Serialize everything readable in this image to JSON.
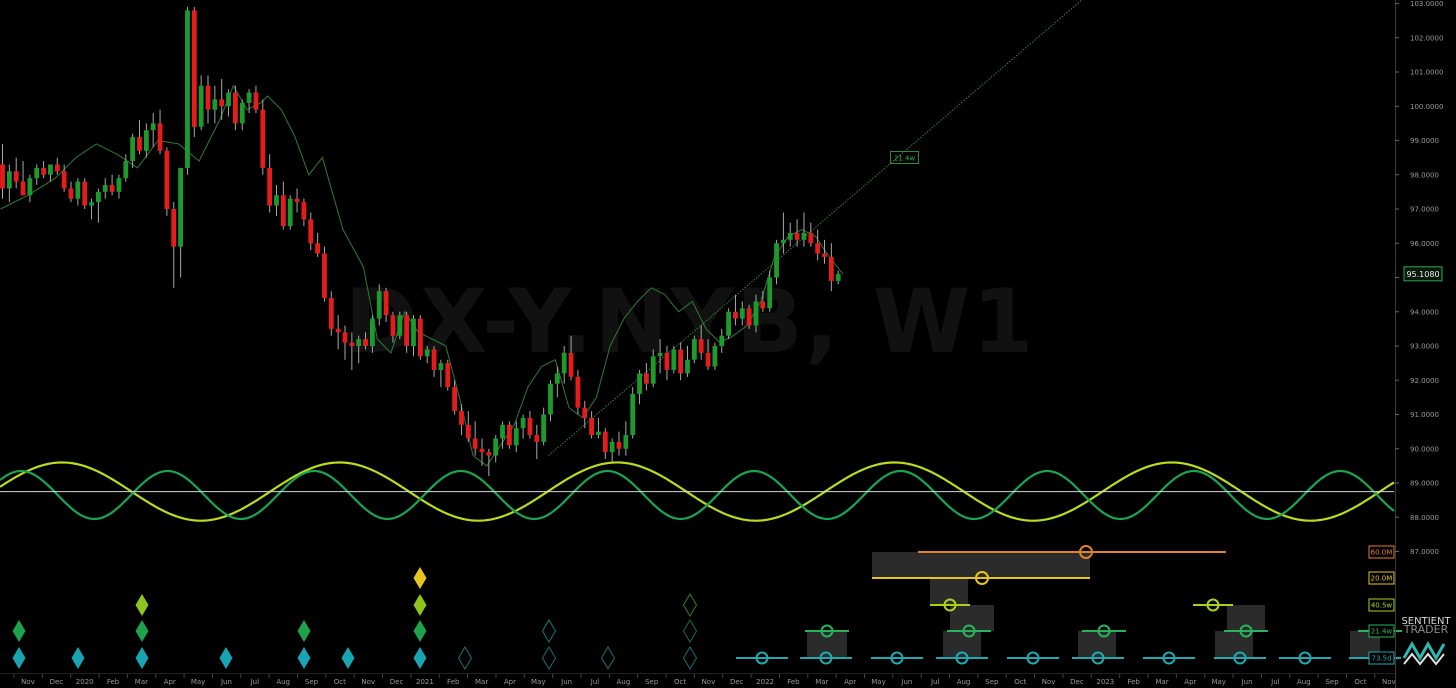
{
  "chart_data": {
    "type": "line",
    "title": "DX-Y.NYB, W1",
    "ylim": [
      87.0,
      103.0
    ],
    "price_axis_ticks": [
      "103.0000",
      "102.0000",
      "101.0000",
      "100.0000",
      "99.0000",
      "98.0000",
      "97.0000",
      "96.0000",
      "95.0000",
      "94.0000",
      "93.0000",
      "92.0000",
      "91.0000",
      "90.0000",
      "89.0000",
      "88.0000",
      "87.0000"
    ],
    "last_price": "95.1080",
    "x_tick_labels": [
      "Nov",
      "Dec",
      "2020",
      "Feb",
      "Mar",
      "Apr",
      "May",
      "Jun",
      "Jul",
      "Aug",
      "Sep",
      "Oct",
      "Nov",
      "Dec",
      "2021",
      "Feb",
      "Mar",
      "Apr",
      "May",
      "Jun",
      "Jul",
      "Aug",
      "Sep",
      "Oct",
      "Nov",
      "Dec",
      "2022",
      "Feb",
      "Mar",
      "Apr",
      "May",
      "Jun",
      "Jul",
      "Aug",
      "Sep",
      "Oct",
      "Nov",
      "Dec",
      "2023",
      "Feb",
      "Mar",
      "Apr",
      "May",
      "Jun",
      "Jul",
      "Aug",
      "Sep",
      "Oct",
      "Nov"
    ],
    "candles": [
      {
        "o": 98.3,
        "h": 98.9,
        "l": 97.3,
        "c": 97.6
      },
      {
        "o": 97.6,
        "h": 98.3,
        "l": 97.2,
        "c": 98.1
      },
      {
        "o": 98.1,
        "h": 98.5,
        "l": 97.6,
        "c": 97.8
      },
      {
        "o": 97.8,
        "h": 98.4,
        "l": 97.4,
        "c": 97.4
      },
      {
        "o": 97.4,
        "h": 98.0,
        "l": 97.2,
        "c": 97.9
      },
      {
        "o": 97.9,
        "h": 98.3,
        "l": 97.7,
        "c": 98.2
      },
      {
        "o": 98.2,
        "h": 98.4,
        "l": 97.9,
        "c": 98.0
      },
      {
        "o": 98.0,
        "h": 98.3,
        "l": 97.8,
        "c": 98.3
      },
      {
        "o": 98.3,
        "h": 98.5,
        "l": 98.0,
        "c": 98.1
      },
      {
        "o": 98.1,
        "h": 98.3,
        "l": 97.5,
        "c": 97.6
      },
      {
        "o": 97.6,
        "h": 97.8,
        "l": 97.2,
        "c": 97.3
      },
      {
        "o": 97.3,
        "h": 97.9,
        "l": 97.1,
        "c": 97.8
      },
      {
        "o": 97.8,
        "h": 97.9,
        "l": 97.0,
        "c": 97.1
      },
      {
        "o": 97.1,
        "h": 97.3,
        "l": 96.7,
        "c": 97.2
      },
      {
        "o": 97.2,
        "h": 97.6,
        "l": 96.6,
        "c": 97.5
      },
      {
        "o": 97.5,
        "h": 97.9,
        "l": 97.3,
        "c": 97.7
      },
      {
        "o": 97.7,
        "h": 98.0,
        "l": 97.4,
        "c": 97.5
      },
      {
        "o": 97.5,
        "h": 98.0,
        "l": 97.3,
        "c": 97.9
      },
      {
        "o": 97.9,
        "h": 98.6,
        "l": 97.8,
        "c": 98.4
      },
      {
        "o": 98.4,
        "h": 99.2,
        "l": 98.2,
        "c": 99.1
      },
      {
        "o": 99.1,
        "h": 99.6,
        "l": 98.6,
        "c": 98.7
      },
      {
        "o": 98.7,
        "h": 99.5,
        "l": 98.5,
        "c": 99.3
      },
      {
        "o": 99.3,
        "h": 99.8,
        "l": 98.8,
        "c": 99.5
      },
      {
        "o": 99.5,
        "h": 99.9,
        "l": 98.6,
        "c": 98.7
      },
      {
        "o": 98.7,
        "h": 98.8,
        "l": 96.8,
        "c": 97.0
      },
      {
        "o": 97.0,
        "h": 97.2,
        "l": 94.7,
        "c": 95.9
      },
      {
        "o": 95.9,
        "h": 98.2,
        "l": 95.0,
        "c": 98.2
      },
      {
        "o": 98.2,
        "h": 102.9,
        "l": 98.0,
        "c": 102.8
      },
      {
        "o": 102.8,
        "h": 102.9,
        "l": 99.1,
        "c": 99.4
      },
      {
        "o": 99.4,
        "h": 100.9,
        "l": 99.3,
        "c": 100.6
      },
      {
        "o": 100.6,
        "h": 100.9,
        "l": 99.5,
        "c": 99.9
      },
      {
        "o": 99.9,
        "h": 100.6,
        "l": 99.5,
        "c": 100.2
      },
      {
        "o": 100.2,
        "h": 100.8,
        "l": 99.6,
        "c": 100.0
      },
      {
        "o": 100.0,
        "h": 100.5,
        "l": 99.7,
        "c": 100.4
      },
      {
        "o": 100.4,
        "h": 100.6,
        "l": 99.3,
        "c": 99.5
      },
      {
        "o": 99.5,
        "h": 100.2,
        "l": 99.3,
        "c": 100.1
      },
      {
        "o": 100.1,
        "h": 100.5,
        "l": 99.8,
        "c": 100.4
      },
      {
        "o": 100.4,
        "h": 100.6,
        "l": 99.8,
        "c": 99.9
      },
      {
        "o": 99.9,
        "h": 100.2,
        "l": 98.0,
        "c": 98.2
      },
      {
        "o": 98.2,
        "h": 98.6,
        "l": 96.9,
        "c": 97.1
      },
      {
        "o": 97.1,
        "h": 97.7,
        "l": 96.8,
        "c": 97.4
      },
      {
        "o": 97.4,
        "h": 97.8,
        "l": 96.4,
        "c": 96.5
      },
      {
        "o": 96.5,
        "h": 97.4,
        "l": 96.4,
        "c": 97.3
      },
      {
        "o": 97.3,
        "h": 97.6,
        "l": 96.9,
        "c": 97.2
      },
      {
        "o": 97.2,
        "h": 97.3,
        "l": 96.5,
        "c": 96.7
      },
      {
        "o": 96.7,
        "h": 96.9,
        "l": 95.8,
        "c": 96.0
      },
      {
        "o": 96.0,
        "h": 96.3,
        "l": 95.6,
        "c": 95.7
      },
      {
        "o": 95.7,
        "h": 95.9,
        "l": 94.3,
        "c": 94.4
      },
      {
        "o": 94.4,
        "h": 94.6,
        "l": 93.3,
        "c": 93.5
      },
      {
        "o": 93.5,
        "h": 93.9,
        "l": 92.9,
        "c": 93.4
      },
      {
        "o": 93.4,
        "h": 93.6,
        "l": 92.6,
        "c": 93.1
      },
      {
        "o": 93.1,
        "h": 93.4,
        "l": 92.3,
        "c": 93.0
      },
      {
        "o": 93.0,
        "h": 93.3,
        "l": 92.5,
        "c": 93.2
      },
      {
        "o": 93.2,
        "h": 93.4,
        "l": 92.9,
        "c": 93.0
      },
      {
        "o": 93.0,
        "h": 93.9,
        "l": 92.8,
        "c": 93.8
      },
      {
        "o": 93.8,
        "h": 94.8,
        "l": 93.6,
        "c": 94.6
      },
      {
        "o": 94.6,
        "h": 94.7,
        "l": 93.7,
        "c": 93.9
      },
      {
        "o": 93.9,
        "h": 94.0,
        "l": 93.1,
        "c": 93.3
      },
      {
        "o": 93.3,
        "h": 94.0,
        "l": 93.2,
        "c": 93.9
      },
      {
        "o": 93.9,
        "h": 94.0,
        "l": 92.8,
        "c": 93.0
      },
      {
        "o": 93.0,
        "h": 93.9,
        "l": 92.7,
        "c": 93.8
      },
      {
        "o": 93.8,
        "h": 93.9,
        "l": 92.6,
        "c": 92.7
      },
      {
        "o": 92.7,
        "h": 93.0,
        "l": 92.5,
        "c": 92.9
      },
      {
        "o": 92.9,
        "h": 93.0,
        "l": 92.1,
        "c": 92.3
      },
      {
        "o": 92.3,
        "h": 92.6,
        "l": 91.8,
        "c": 92.5
      },
      {
        "o": 92.5,
        "h": 92.6,
        "l": 91.7,
        "c": 91.8
      },
      {
        "o": 91.8,
        "h": 92.0,
        "l": 91.0,
        "c": 91.1
      },
      {
        "o": 91.1,
        "h": 91.3,
        "l": 90.4,
        "c": 90.7
      },
      {
        "o": 90.7,
        "h": 91.1,
        "l": 90.2,
        "c": 90.3
      },
      {
        "o": 90.3,
        "h": 90.8,
        "l": 89.8,
        "c": 90.0
      },
      {
        "o": 90.0,
        "h": 90.3,
        "l": 89.5,
        "c": 89.9
      },
      {
        "o": 89.9,
        "h": 90.0,
        "l": 89.2,
        "c": 89.8
      },
      {
        "o": 89.8,
        "h": 90.4,
        "l": 89.6,
        "c": 90.3
      },
      {
        "o": 90.3,
        "h": 90.8,
        "l": 90.0,
        "c": 90.7
      },
      {
        "o": 90.7,
        "h": 90.8,
        "l": 90.0,
        "c": 90.1
      },
      {
        "o": 90.1,
        "h": 90.8,
        "l": 89.9,
        "c": 90.6
      },
      {
        "o": 90.6,
        "h": 91.0,
        "l": 90.3,
        "c": 90.9
      },
      {
        "o": 90.9,
        "h": 91.1,
        "l": 90.3,
        "c": 90.4
      },
      {
        "o": 90.4,
        "h": 90.7,
        "l": 89.7,
        "c": 90.2
      },
      {
        "o": 90.2,
        "h": 91.2,
        "l": 90.1,
        "c": 91.0
      },
      {
        "o": 91.0,
        "h": 92.0,
        "l": 90.8,
        "c": 91.9
      },
      {
        "o": 91.9,
        "h": 92.4,
        "l": 91.5,
        "c": 92.2
      },
      {
        "o": 92.2,
        "h": 93.0,
        "l": 91.9,
        "c": 92.8
      },
      {
        "o": 92.8,
        "h": 93.3,
        "l": 92.0,
        "c": 92.1
      },
      {
        "o": 92.1,
        "h": 92.3,
        "l": 91.0,
        "c": 91.2
      },
      {
        "o": 91.2,
        "h": 91.4,
        "l": 90.6,
        "c": 90.9
      },
      {
        "o": 90.9,
        "h": 91.1,
        "l": 90.3,
        "c": 90.4
      },
      {
        "o": 90.4,
        "h": 90.9,
        "l": 90.3,
        "c": 90.5
      },
      {
        "o": 90.5,
        "h": 90.6,
        "l": 89.7,
        "c": 89.9
      },
      {
        "o": 89.9,
        "h": 90.3,
        "l": 89.6,
        "c": 90.2
      },
      {
        "o": 90.2,
        "h": 90.5,
        "l": 89.8,
        "c": 90.0
      },
      {
        "o": 90.0,
        "h": 90.8,
        "l": 89.8,
        "c": 90.4
      },
      {
        "o": 90.4,
        "h": 91.8,
        "l": 90.3,
        "c": 91.6
      },
      {
        "o": 91.6,
        "h": 92.3,
        "l": 91.3,
        "c": 92.2
      },
      {
        "o": 92.2,
        "h": 92.5,
        "l": 91.7,
        "c": 91.9
      },
      {
        "o": 91.9,
        "h": 92.9,
        "l": 91.8,
        "c": 92.7
      },
      {
        "o": 92.7,
        "h": 93.2,
        "l": 92.2,
        "c": 92.8
      },
      {
        "o": 92.8,
        "h": 93.0,
        "l": 92.0,
        "c": 92.3
      },
      {
        "o": 92.3,
        "h": 93.0,
        "l": 92.2,
        "c": 92.9
      },
      {
        "o": 92.9,
        "h": 93.1,
        "l": 92.0,
        "c": 92.2
      },
      {
        "o": 92.2,
        "h": 93.0,
        "l": 92.1,
        "c": 92.6
      },
      {
        "o": 92.6,
        "h": 93.3,
        "l": 92.5,
        "c": 93.2
      },
      {
        "o": 93.2,
        "h": 93.6,
        "l": 92.6,
        "c": 92.8
      },
      {
        "o": 92.8,
        "h": 93.2,
        "l": 92.3,
        "c": 92.4
      },
      {
        "o": 92.4,
        "h": 93.1,
        "l": 92.3,
        "c": 93.0
      },
      {
        "o": 93.0,
        "h": 93.5,
        "l": 92.8,
        "c": 93.3
      },
      {
        "o": 93.3,
        "h": 94.1,
        "l": 93.2,
        "c": 94.0
      },
      {
        "o": 94.0,
        "h": 94.5,
        "l": 93.6,
        "c": 93.8
      },
      {
        "o": 93.8,
        "h": 94.3,
        "l": 93.6,
        "c": 94.1
      },
      {
        "o": 94.1,
        "h": 94.2,
        "l": 93.5,
        "c": 93.6
      },
      {
        "o": 93.6,
        "h": 94.5,
        "l": 93.4,
        "c": 94.3
      },
      {
        "o": 94.3,
        "h": 94.6,
        "l": 94.0,
        "c": 94.1
      },
      {
        "o": 94.1,
        "h": 95.2,
        "l": 94.0,
        "c": 95.0
      },
      {
        "o": 95.0,
        "h": 96.1,
        "l": 94.8,
        "c": 96.0
      },
      {
        "o": 96.0,
        "h": 96.9,
        "l": 95.7,
        "c": 96.1
      },
      {
        "o": 96.1,
        "h": 96.6,
        "l": 95.9,
        "c": 96.3
      },
      {
        "o": 96.3,
        "h": 96.7,
        "l": 95.9,
        "c": 96.1
      },
      {
        "o": 96.1,
        "h": 96.9,
        "l": 95.9,
        "c": 96.3
      },
      {
        "o": 96.3,
        "h": 96.6,
        "l": 95.9,
        "c": 96.0
      },
      {
        "o": 96.0,
        "h": 96.4,
        "l": 95.5,
        "c": 95.7
      },
      {
        "o": 95.7,
        "h": 96.1,
        "l": 95.4,
        "c": 95.6
      },
      {
        "o": 95.6,
        "h": 96.0,
        "l": 94.6,
        "c": 94.9
      },
      {
        "o": 94.9,
        "h": 95.2,
        "l": 94.8,
        "c": 95.1
      }
    ],
    "trend_line": {
      "points": [
        {
          "i": 80,
          "price": 89.8
        },
        {
          "i": 159,
          "price": 103.3
        }
      ]
    },
    "trend_label": "21.4w",
    "envelope": [
      {
        "i": 0,
        "p": 97.0
      },
      {
        "i": 4,
        "p": 97.4
      },
      {
        "i": 8,
        "p": 97.9
      },
      {
        "i": 11,
        "p": 98.5
      },
      {
        "i": 14,
        "p": 98.9
      },
      {
        "i": 17,
        "p": 98.6
      },
      {
        "i": 20,
        "p": 98.2
      },
      {
        "i": 23,
        "p": 99.0
      },
      {
        "i": 26,
        "p": 98.9
      },
      {
        "i": 29,
        "p": 98.4
      },
      {
        "i": 32,
        "p": 99.6
      },
      {
        "i": 34,
        "p": 100.6
      },
      {
        "i": 36,
        "p": 99.9
      },
      {
        "i": 38,
        "p": 100.1
      },
      {
        "i": 39,
        "p": 100.3
      },
      {
        "i": 41,
        "p": 99.9
      },
      {
        "i": 43,
        "p": 99.1
      },
      {
        "i": 45,
        "p": 98.0
      },
      {
        "i": 47,
        "p": 98.5
      },
      {
        "i": 50,
        "p": 96.4
      },
      {
        "i": 53,
        "p": 95.3
      },
      {
        "i": 55,
        "p": 93.2
      },
      {
        "i": 57,
        "p": 92.8
      },
      {
        "i": 59,
        "p": 94.0
      },
      {
        "i": 61,
        "p": 93.4
      },
      {
        "i": 63,
        "p": 93.2
      },
      {
        "i": 65,
        "p": 93.0
      },
      {
        "i": 67,
        "p": 91.5
      },
      {
        "i": 69,
        "p": 89.8
      },
      {
        "i": 71,
        "p": 89.5
      },
      {
        "i": 73,
        "p": 90.1
      },
      {
        "i": 75,
        "p": 90.7
      },
      {
        "i": 77,
        "p": 91.8
      },
      {
        "i": 79,
        "p": 92.4
      },
      {
        "i": 81,
        "p": 92.6
      },
      {
        "i": 83,
        "p": 91.2
      },
      {
        "i": 85,
        "p": 90.9
      },
      {
        "i": 87,
        "p": 91.5
      },
      {
        "i": 89,
        "p": 93.0
      },
      {
        "i": 91,
        "p": 93.8
      },
      {
        "i": 93,
        "p": 94.3
      },
      {
        "i": 95,
        "p": 94.7
      },
      {
        "i": 97,
        "p": 94.5
      },
      {
        "i": 99,
        "p": 94.0
      },
      {
        "i": 101,
        "p": 94.3
      },
      {
        "i": 103,
        "p": 93.5
      },
      {
        "i": 105,
        "p": 93.1
      },
      {
        "i": 107,
        "p": 93.3
      },
      {
        "i": 109,
        "p": 93.6
      },
      {
        "i": 111,
        "p": 94.3
      },
      {
        "i": 113,
        "p": 95.6
      },
      {
        "i": 115,
        "p": 96.2
      },
      {
        "i": 117,
        "p": 96.4
      },
      {
        "i": 119,
        "p": 96.2
      },
      {
        "i": 121,
        "p": 95.6
      },
      {
        "i": 123,
        "p": 95.1
      }
    ],
    "cycle_lines": [
      {
        "color": "#b9dc1e",
        "period_bars": 40.5,
        "phase_bar": 9,
        "y_mid": 88.75,
        "amp": 0.85
      },
      {
        "color": "#1aa555",
        "period_bars": 21.4,
        "phase_bar": 3,
        "y_mid": 88.65,
        "amp": 0.7
      }
    ],
    "horizontal_line": 88.75,
    "cycle_labels": [
      {
        "text": "60.0M",
        "color": "#e0822b"
      },
      {
        "text": "20.0M",
        "color": "#e6c421"
      },
      {
        "text": "40.5w",
        "color": "#a9d21e"
      },
      {
        "text": "21.4w",
        "color": "#28b35a"
      },
      {
        "text": "73.5d",
        "color": "#22a8b0"
      }
    ],
    "brand": {
      "line1": "SENTIENT",
      "line2": "TRADER"
    }
  }
}
